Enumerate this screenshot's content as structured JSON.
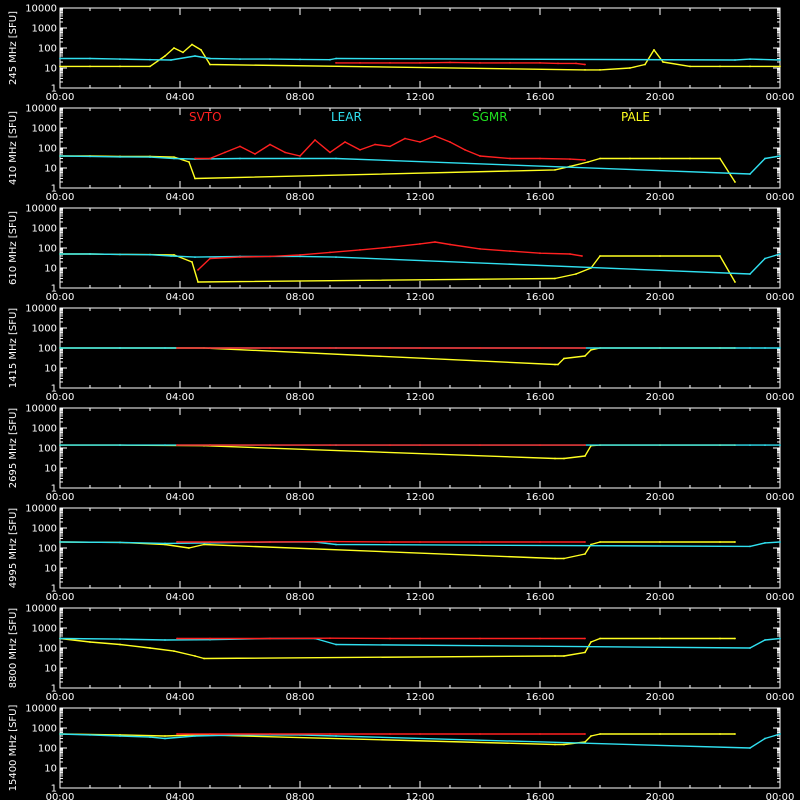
{
  "colors": {
    "SVTO": "#ff2020",
    "LEAR": "#30e0f0",
    "SGMR": "#20e020",
    "PALE": "#ffff20",
    "axes": "#ffffff",
    "background": "#000000"
  },
  "legend": {
    "placement": "top, inside panel 2",
    "entries": [
      "SVTO",
      "LEAR",
      "SGMR",
      "PALE"
    ]
  },
  "chart_data": [
    {
      "type": "line",
      "ylabel": "245 MHz  [SFU]",
      "xlim": [
        "00:00",
        "24:00"
      ],
      "ylim": [
        1,
        10000
      ],
      "yscale": "log",
      "x_tick_labels": [
        "00:00",
        "04:00",
        "08:00",
        "12:00",
        "16:00",
        "20:00",
        "00:00"
      ],
      "y_tick_labels": [
        "1",
        "10",
        "100",
        "1000",
        "10000"
      ],
      "series": [
        {
          "name": "SVTO",
          "x": [
            9.2,
            10,
            11,
            12,
            13,
            14,
            15,
            16,
            16.6,
            17.2,
            17.5
          ],
          "y": [
            18,
            18,
            18,
            18,
            19,
            18,
            18,
            18,
            17,
            17,
            15
          ]
        },
        {
          "name": "LEAR",
          "x": [
            0,
            1,
            2,
            3,
            3.7,
            4.5,
            5,
            6,
            7,
            8,
            9,
            9.2,
            22.5,
            23,
            24
          ],
          "y": [
            30,
            30,
            28,
            26,
            25,
            40,
            30,
            28,
            28,
            27,
            26,
            30,
            25,
            28,
            25
          ]
        },
        {
          "name": "PALE",
          "x": [
            0,
            1,
            2,
            3,
            3.5,
            3.8,
            4.1,
            4.4,
            4.7,
            5.0,
            17.5,
            18,
            19,
            19.5,
            19.8,
            20.1,
            21,
            22,
            23,
            24
          ],
          "y": [
            12,
            12,
            12,
            12,
            40,
            100,
            60,
            150,
            80,
            15,
            8,
            8,
            10,
            15,
            80,
            20,
            12,
            12,
            12,
            12
          ]
        }
      ]
    },
    {
      "type": "line",
      "ylabel": "410 MHz  [SFU]",
      "xlim": [
        "00:00",
        "24:00"
      ],
      "ylim": [
        1,
        10000
      ],
      "yscale": "log",
      "x_tick_labels": [
        "00:00",
        "04:00",
        "08:00",
        "12:00",
        "16:00",
        "20:00",
        "00:00"
      ],
      "y_tick_labels": [
        "1",
        "10",
        "100",
        "1000",
        "10000"
      ],
      "series": [
        {
          "name": "SVTO",
          "x": [
            4.5,
            5.0,
            5.5,
            6.0,
            6.5,
            7.0,
            7.5,
            8.0,
            8.5,
            9.0,
            9.5,
            10.0,
            10.5,
            11.0,
            11.5,
            12.0,
            12.5,
            13.0,
            13.5,
            14.0,
            15.0,
            16.0,
            17.0,
            17.5
          ],
          "y": [
            30,
            30,
            60,
            120,
            50,
            150,
            60,
            40,
            250,
            60,
            200,
            80,
            150,
            120,
            300,
            200,
            400,
            200,
            80,
            40,
            30,
            30,
            28,
            25
          ]
        },
        {
          "name": "LEAR",
          "x": [
            0,
            1,
            2,
            3,
            3.8,
            4.5,
            6,
            8,
            9.2,
            23,
            23.5,
            24
          ],
          "y": [
            40,
            38,
            36,
            35,
            30,
            28,
            30,
            30,
            30,
            5,
            30,
            40
          ]
        },
        {
          "name": "PALE",
          "x": [
            0,
            1,
            2,
            3,
            3.8,
            4.3,
            4.5,
            16.5,
            17.0,
            17.6,
            18,
            19,
            20,
            21,
            22,
            22.5
          ],
          "y": [
            40,
            40,
            38,
            38,
            35,
            20,
            3,
            8,
            12,
            20,
            30,
            30,
            30,
            30,
            30,
            2
          ]
        }
      ]
    },
    {
      "type": "line",
      "ylabel": "610 MHz  [SFU]",
      "xlim": [
        "00:00",
        "24:00"
      ],
      "ylim": [
        1,
        10000
      ],
      "yscale": "log",
      "x_tick_labels": [
        "00:00",
        "04:00",
        "08:00",
        "12:00",
        "16:00",
        "20:00",
        "00:00"
      ],
      "y_tick_labels": [
        "1",
        "10",
        "100",
        "1000",
        "10000"
      ],
      "series": [
        {
          "name": "SVTO",
          "x": [
            4.6,
            5.0,
            6,
            7,
            8,
            9,
            10,
            11,
            12,
            12.5,
            13,
            14,
            15,
            16,
            17,
            17.4
          ],
          "y": [
            8,
            30,
            35,
            38,
            45,
            60,
            80,
            110,
            160,
            200,
            150,
            90,
            70,
            55,
            50,
            40
          ]
        },
        {
          "name": "LEAR",
          "x": [
            0,
            1,
            2,
            3,
            3.7,
            4.5,
            6,
            8,
            9.2,
            23,
            23.5,
            24
          ],
          "y": [
            50,
            50,
            48,
            46,
            40,
            35,
            38,
            38,
            35,
            5,
            30,
            50
          ]
        },
        {
          "name": "PALE",
          "x": [
            0,
            1,
            2,
            3,
            3.8,
            4.4,
            4.6,
            16.5,
            17.2,
            17.7,
            18,
            20,
            22,
            22.5
          ],
          "y": [
            50,
            50,
            48,
            47,
            45,
            20,
            2,
            3,
            5,
            10,
            40,
            40,
            40,
            2
          ]
        }
      ]
    },
    {
      "type": "line",
      "ylabel": "1415 MHz  [SFU]",
      "xlim": [
        "00:00",
        "24:00"
      ],
      "ylim": [
        1,
        10000
      ],
      "yscale": "log",
      "x_tick_labels": [
        "00:00",
        "04:00",
        "08:00",
        "12:00",
        "16:00",
        "20:00",
        "00:00"
      ],
      "y_tick_labels": [
        "1",
        "10",
        "100",
        "1000",
        "10000"
      ],
      "series": [
        {
          "name": "SVTO",
          "x": [
            3.9,
            5,
            7,
            9,
            11,
            12,
            14,
            16,
            17.5
          ],
          "y": [
            100,
            100,
            100,
            100,
            100,
            100,
            100,
            100,
            100
          ]
        },
        {
          "name": "LEAR",
          "x": [
            0,
            2,
            3.5,
            5,
            7,
            9.2,
            23,
            23.5,
            24
          ],
          "y": [
            100,
            100,
            100,
            100,
            100,
            100,
            100,
            100,
            100
          ]
        },
        {
          "name": "PALE",
          "x": [
            0,
            2,
            4.8,
            16.5,
            16.6,
            16.8,
            17.5,
            17.7,
            18,
            20,
            22,
            22.5
          ],
          "y": [
            100,
            100,
            100,
            15,
            15,
            30,
            40,
            80,
            100,
            100,
            100,
            100
          ]
        }
      ]
    },
    {
      "type": "line",
      "ylabel": "2695 MHz  [SFU]",
      "xlim": [
        "00:00",
        "24:00"
      ],
      "ylim": [
        1,
        10000
      ],
      "yscale": "log",
      "x_tick_labels": [
        "00:00",
        "04:00",
        "08:00",
        "12:00",
        "16:00",
        "20:00",
        "00:00"
      ],
      "y_tick_labels": [
        "1",
        "10",
        "100",
        "1000",
        "10000"
      ],
      "series": [
        {
          "name": "SVTO",
          "x": [
            3.9,
            5,
            7,
            9,
            11,
            12,
            14,
            16,
            17.5
          ],
          "y": [
            140,
            140,
            140,
            140,
            140,
            140,
            140,
            140,
            140
          ]
        },
        {
          "name": "LEAR",
          "x": [
            0,
            2,
            3.5,
            5,
            7,
            9.2,
            23,
            23.5,
            24
          ],
          "y": [
            140,
            140,
            140,
            140,
            140,
            140,
            140,
            140,
            140
          ]
        },
        {
          "name": "PALE",
          "x": [
            0,
            2,
            4.8,
            16.5,
            16.8,
            17.5,
            17.7,
            18,
            20,
            22,
            22.5
          ],
          "y": [
            140,
            140,
            130,
            30,
            30,
            40,
            130,
            140,
            140,
            140,
            140
          ]
        }
      ]
    },
    {
      "type": "line",
      "ylabel": "4995 MHz  [SFU]",
      "xlim": [
        "00:00",
        "24:00"
      ],
      "ylim": [
        1,
        10000
      ],
      "yscale": "log",
      "x_tick_labels": [
        "00:00",
        "04:00",
        "08:00",
        "12:00",
        "16:00",
        "20:00",
        "00:00"
      ],
      "y_tick_labels": [
        "1",
        "10",
        "100",
        "1000",
        "10000"
      ],
      "series": [
        {
          "name": "SVTO",
          "x": [
            3.9,
            5,
            7,
            9,
            11,
            12,
            14,
            16,
            17.5
          ],
          "y": [
            200,
            200,
            200,
            210,
            200,
            200,
            200,
            200,
            200
          ]
        },
        {
          "name": "LEAR",
          "x": [
            0,
            2,
            3.5,
            5,
            7,
            8.5,
            9.2,
            23,
            23.5,
            24
          ],
          "y": [
            200,
            190,
            170,
            180,
            200,
            200,
            150,
            120,
            180,
            200
          ]
        },
        {
          "name": "PALE",
          "x": [
            0,
            2,
            3.5,
            4.3,
            4.8,
            16.5,
            16.8,
            17.5,
            17.7,
            18,
            20,
            22,
            22.5
          ],
          "y": [
            200,
            190,
            150,
            100,
            150,
            30,
            30,
            50,
            150,
            200,
            200,
            200,
            200
          ]
        }
      ]
    },
    {
      "type": "line",
      "ylabel": "8800 MHz  [SFU]",
      "xlim": [
        "00:00",
        "24:00"
      ],
      "ylim": [
        1,
        10000
      ],
      "yscale": "log",
      "x_tick_labels": [
        "00:00",
        "04:00",
        "08:00",
        "12:00",
        "16:00",
        "20:00",
        "00:00"
      ],
      "y_tick_labels": [
        "1",
        "10",
        "100",
        "1000",
        "10000"
      ],
      "series": [
        {
          "name": "SVTO",
          "x": [
            3.9,
            5,
            7,
            9,
            11,
            12,
            14,
            16,
            17.5
          ],
          "y": [
            300,
            300,
            300,
            310,
            300,
            300,
            300,
            300,
            300
          ]
        },
        {
          "name": "LEAR",
          "x": [
            0,
            2,
            3.5,
            5,
            7,
            8.5,
            9.2,
            23,
            23.5,
            24
          ],
          "y": [
            300,
            280,
            250,
            260,
            300,
            300,
            150,
            100,
            250,
            300
          ]
        },
        {
          "name": "PALE",
          "x": [
            0,
            1,
            2,
            3,
            3.8,
            4.5,
            4.8,
            16.5,
            16.8,
            17.5,
            17.7,
            18,
            20,
            22,
            22.5
          ],
          "y": [
            300,
            200,
            150,
            100,
            70,
            40,
            30,
            40,
            40,
            60,
            200,
            300,
            300,
            300,
            300
          ]
        }
      ]
    },
    {
      "type": "line",
      "ylabel": "15400 MHz  [SFU]",
      "xlim": [
        "00:00",
        "24:00"
      ],
      "ylim": [
        1,
        10000
      ],
      "yscale": "log",
      "x_tick_labels": [
        "00:00",
        "04:00",
        "08:00",
        "12:00",
        "16:00",
        "20:00",
        "00:00"
      ],
      "y_tick_labels": [
        "1",
        "10",
        "100",
        "1000",
        "10000"
      ],
      "series": [
        {
          "name": "SVTO",
          "x": [
            3.9,
            5,
            7,
            9,
            11,
            12,
            14,
            16,
            17.5
          ],
          "y": [
            500,
            500,
            500,
            500,
            500,
            500,
            500,
            500,
            500
          ]
        },
        {
          "name": "LEAR",
          "x": [
            0,
            1,
            2,
            3,
            3.5,
            4.5,
            6,
            8,
            9.2,
            23,
            23.5,
            24
          ],
          "y": [
            500,
            450,
            400,
            350,
            300,
            400,
            450,
            450,
            400,
            100,
            300,
            500
          ]
        },
        {
          "name": "PALE",
          "x": [
            0,
            2,
            3.5,
            4.5,
            4.8,
            16.5,
            16.8,
            17.5,
            17.7,
            18,
            20,
            22,
            22.5
          ],
          "y": [
            500,
            450,
            400,
            450,
            450,
            150,
            150,
            200,
            400,
            500,
            500,
            500,
            500
          ]
        }
      ]
    }
  ]
}
